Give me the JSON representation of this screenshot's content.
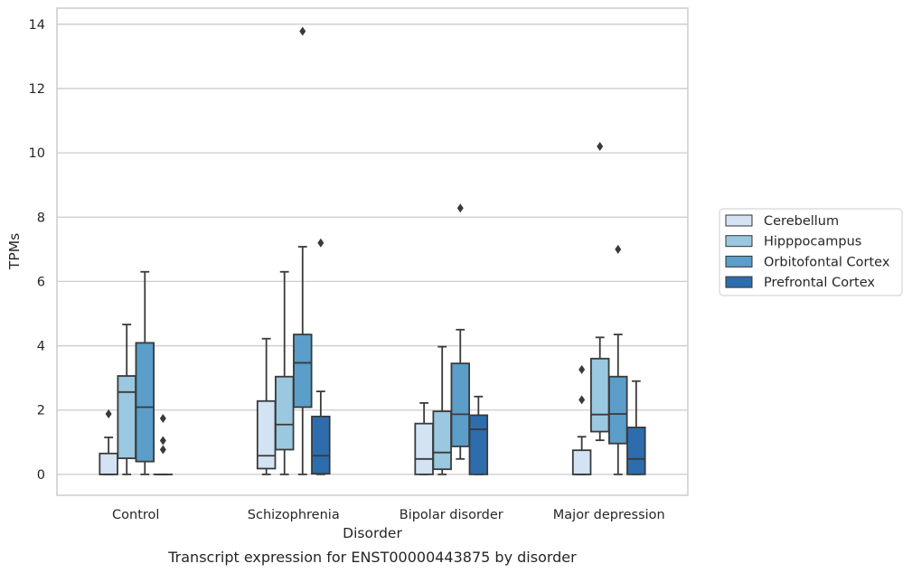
{
  "chart_data": {
    "type": "box",
    "title": "",
    "caption": "Transcript expression for ENST00000443875 by disorder",
    "xlabel": "Disorder",
    "ylabel": "TPMs",
    "ylim": [
      -0.65,
      14.5
    ],
    "yticks": [
      0,
      2,
      4,
      6,
      8,
      10,
      12,
      14
    ],
    "grid": "horizontal",
    "legend_position": "right",
    "categories": [
      "Control",
      "Schizophrenia",
      "Bipolar disorder",
      "Major depression"
    ],
    "series": [
      {
        "name": "Cerebellum",
        "color": "#d3e3f3",
        "boxes": [
          {
            "min": 0,
            "q1": 0,
            "median": 0,
            "q3": 0.65,
            "max": 1.15,
            "outliers": [
              1.88
            ]
          },
          {
            "min": 0,
            "q1": 0.18,
            "median": 0.58,
            "q3": 2.28,
            "max": 4.22,
            "outliers": []
          },
          {
            "min": 0,
            "q1": 0,
            "median": 0.48,
            "q3": 1.58,
            "max": 2.22,
            "outliers": []
          },
          {
            "min": 0,
            "q1": 0,
            "median": 0,
            "q3": 0.75,
            "max": 1.17,
            "outliers": [
              2.32,
              3.26
            ]
          }
        ]
      },
      {
        "name": "Hipppocampus",
        "color": "#9ac8e0",
        "boxes": [
          {
            "min": 0,
            "q1": 0.5,
            "median": 2.56,
            "q3": 3.06,
            "max": 4.66,
            "outliers": []
          },
          {
            "min": 0,
            "q1": 0.77,
            "median": 1.55,
            "q3": 3.04,
            "max": 6.3,
            "outliers": []
          },
          {
            "min": 0,
            "q1": 0.16,
            "median": 0.68,
            "q3": 1.96,
            "max": 3.97,
            "outliers": []
          },
          {
            "min": 1.06,
            "q1": 1.33,
            "median": 1.86,
            "q3": 3.6,
            "max": 4.26,
            "outliers": [
              10.2
            ]
          }
        ]
      },
      {
        "name": "Orbitofontal Cortex",
        "color": "#5a9ec9",
        "boxes": [
          {
            "min": 0,
            "q1": 0.4,
            "median": 2.09,
            "q3": 4.09,
            "max": 6.3,
            "outliers": []
          },
          {
            "min": 0,
            "q1": 2.09,
            "median": 3.47,
            "q3": 4.35,
            "max": 7.08,
            "outliers": [
              13.78
            ]
          },
          {
            "min": 0.48,
            "q1": 0.87,
            "median": 1.87,
            "q3": 3.45,
            "max": 4.5,
            "outliers": [
              8.28
            ]
          },
          {
            "min": 0,
            "q1": 0.96,
            "median": 1.88,
            "q3": 3.04,
            "max": 4.35,
            "outliers": [
              7.0
            ]
          }
        ]
      },
      {
        "name": "Prefrontal Cortex",
        "color": "#2d6dad",
        "boxes": [
          {
            "min": 0,
            "q1": 0,
            "median": 0,
            "q3": 0,
            "max": 0,
            "outliers": [
              0.77,
              1.05,
              1.74
            ]
          },
          {
            "min": 0,
            "q1": 0.02,
            "median": 0.58,
            "q3": 1.8,
            "max": 2.58,
            "outliers": [
              7.2
            ]
          },
          {
            "min": 0,
            "q1": 0,
            "median": 1.4,
            "q3": 1.84,
            "max": 2.42,
            "outliers": []
          },
          {
            "min": 0,
            "q1": 0,
            "median": 0.48,
            "q3": 1.46,
            "max": 2.9,
            "outliers": []
          }
        ]
      }
    ]
  }
}
